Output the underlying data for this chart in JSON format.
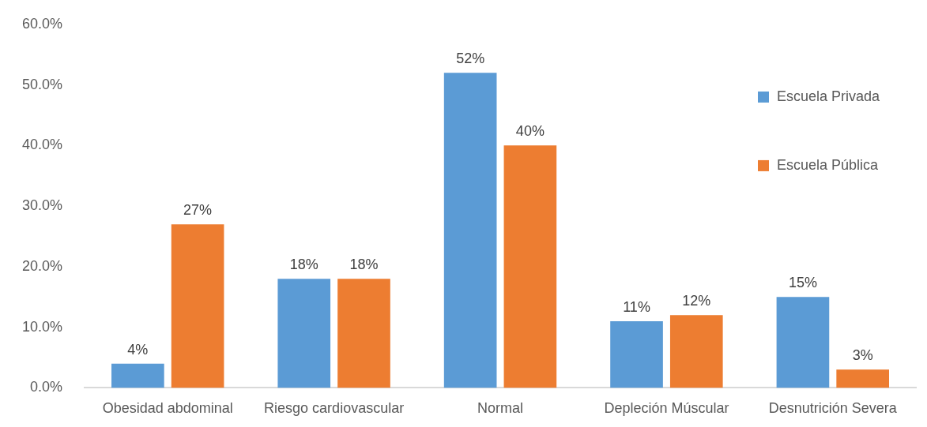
{
  "chart_data": {
    "type": "bar",
    "categories": [
      "Obesidad abdominal",
      "Riesgo cardiovascular",
      "Normal",
      "Depleción Múscular",
      "Desnutrición Severa"
    ],
    "series": [
      {
        "name": "Escuela Privada",
        "color": "#5b9bd5",
        "values": [
          4,
          18,
          52,
          11,
          15
        ],
        "value_labels": [
          "4%",
          "18%",
          "52%",
          "11%",
          "15%"
        ]
      },
      {
        "name": "Escuela Pública",
        "color": "#ed7d31",
        "values": [
          27,
          18,
          40,
          12,
          3
        ],
        "value_labels": [
          "27%",
          "18%",
          "40%",
          "12%",
          "3%"
        ]
      }
    ],
    "ylim": [
      0,
      60
    ],
    "yticks": [
      {
        "value": 0,
        "label": "0.0%"
      },
      {
        "value": 10,
        "label": "10.0%"
      },
      {
        "value": 20,
        "label": "20.0%"
      },
      {
        "value": 30,
        "label": "30.0%"
      },
      {
        "value": 40,
        "label": "40.0%"
      },
      {
        "value": 50,
        "label": "50.0%"
      },
      {
        "value": 60,
        "label": "60.0%"
      }
    ],
    "legend": "right"
  }
}
